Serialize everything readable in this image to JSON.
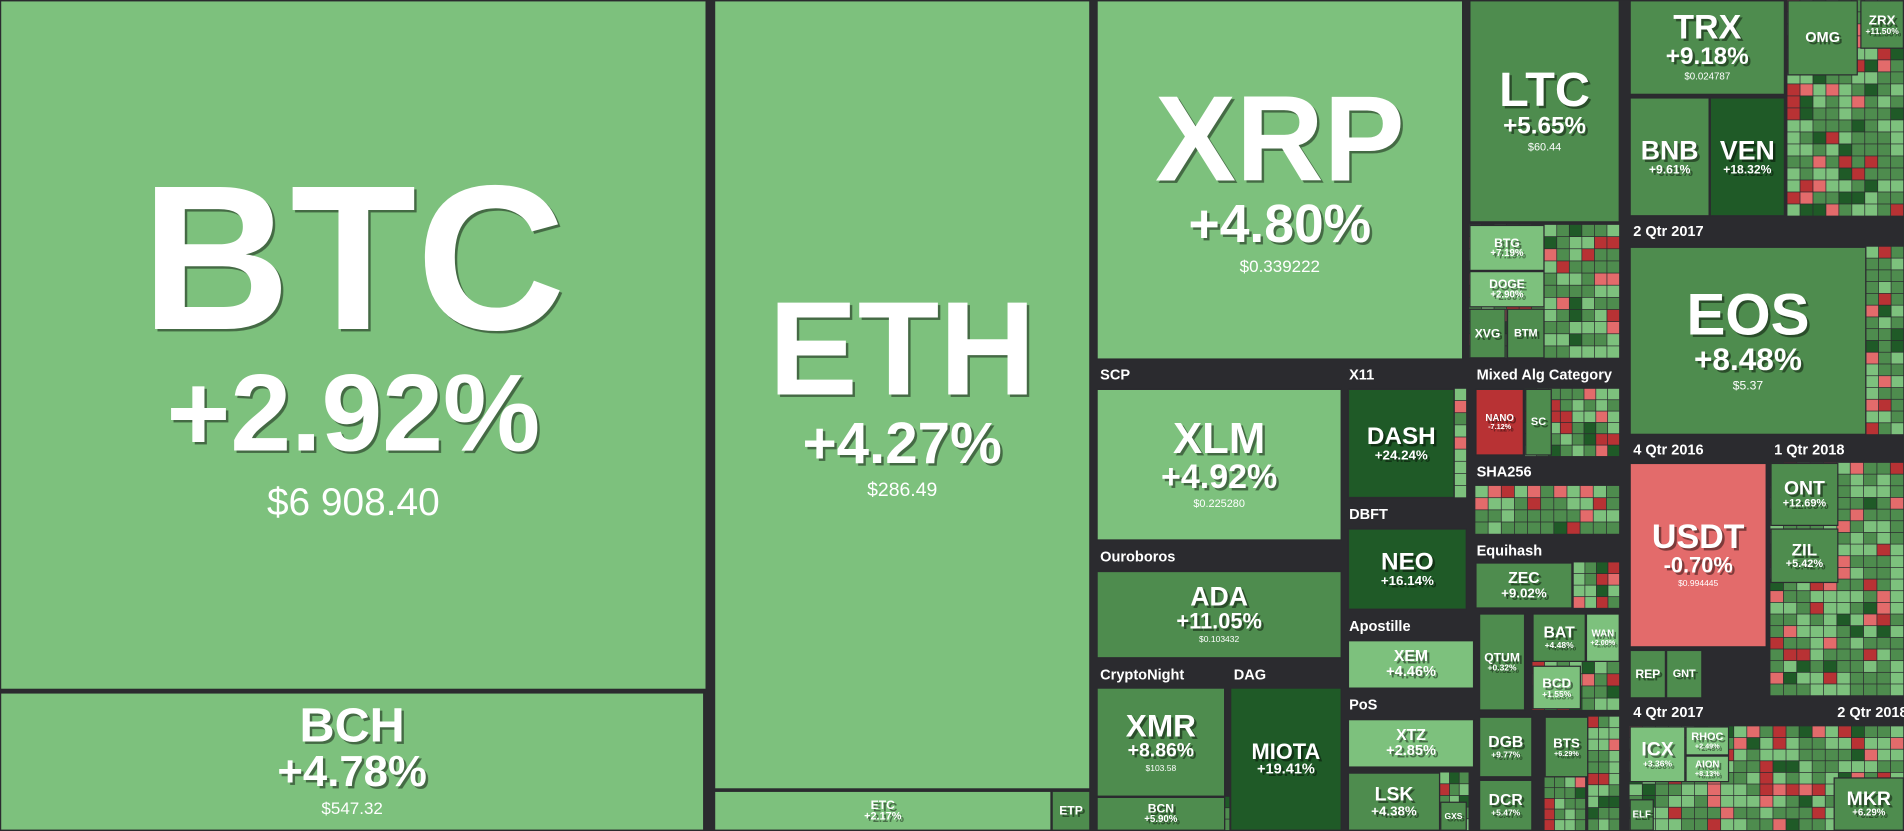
{
  "tiles": [
    {
      "symbol": "BTC",
      "change": "+2.92%",
      "price": "$6 908.40"
    },
    {
      "symbol": "BCH",
      "change": "+4.78%",
      "price": "$547.32"
    },
    {
      "symbol": "ETH",
      "change": "+4.27%",
      "price": "$286.49"
    },
    {
      "symbol": "ETC",
      "change": "+2.17%"
    },
    {
      "symbol": "ETP"
    },
    {
      "symbol": "XRP",
      "change": "+4.80%",
      "price": "$0.339222"
    },
    {
      "symbol": "LTC",
      "change": "+5.65%",
      "price": "$60.44"
    },
    {
      "symbol": "BTG",
      "change": "+7.19%"
    },
    {
      "symbol": "DOGE",
      "change": "+2.90%"
    },
    {
      "symbol": "XVG"
    },
    {
      "symbol": "BTM"
    },
    {
      "symbol": "TRX",
      "change": "+9.18%",
      "price": "$0.024787"
    },
    {
      "symbol": "OMG"
    },
    {
      "symbol": "ZRX",
      "change": "+11.50%"
    },
    {
      "symbol": "BNB",
      "change": "+9.61%"
    },
    {
      "symbol": "VEN",
      "change": "+18.32%"
    },
    {
      "symbol": "EOS",
      "change": "+8.48%",
      "price": "$5.37"
    },
    {
      "symbol": "USDT",
      "change": "-0.70%",
      "price": "$0.994445"
    },
    {
      "symbol": "ONT",
      "change": "+12.69%"
    },
    {
      "symbol": "ZIL",
      "change": "+5.42%"
    },
    {
      "symbol": "REP"
    },
    {
      "symbol": "GNT"
    },
    {
      "symbol": "ICX",
      "change": "+3.36%"
    },
    {
      "symbol": "RHOC",
      "change": "+2.49%"
    },
    {
      "symbol": "AION",
      "change": "+8.13%"
    },
    {
      "symbol": "ELF"
    },
    {
      "symbol": "MKR",
      "change": "+6.29%"
    },
    {
      "symbol": "XLM",
      "change": "+4.92%",
      "price": "$0.225280"
    },
    {
      "symbol": "ADA",
      "change": "+11.05%",
      "price": "$0.103432"
    },
    {
      "symbol": "XMR",
      "change": "+8.86%",
      "price": "$103.58"
    },
    {
      "symbol": "BCN",
      "change": "+5.90%"
    },
    {
      "symbol": "MIOTA",
      "change": "+19.41%"
    },
    {
      "symbol": "DASH",
      "change": "+24.24%"
    },
    {
      "symbol": "NEO",
      "change": "+16.14%"
    },
    {
      "symbol": "XEM",
      "change": "+4.46%"
    },
    {
      "symbol": "XTZ",
      "change": "+2.85%"
    },
    {
      "symbol": "LSK",
      "change": "+4.38%"
    },
    {
      "symbol": "GXS"
    },
    {
      "symbol": "NANO",
      "change": "-7.12%"
    },
    {
      "symbol": "SC"
    },
    {
      "symbol": "ZEC",
      "change": "+9.02%"
    },
    {
      "symbol": "QTUM",
      "change": "+0.32%"
    },
    {
      "symbol": "BAT",
      "change": "+4.48%"
    },
    {
      "symbol": "WAN",
      "change": "+2.00%"
    },
    {
      "symbol": "BCD",
      "change": "+1.55%"
    },
    {
      "symbol": "DGB",
      "change": "+9.77%"
    },
    {
      "symbol": "BTS",
      "change": "+6.29%"
    },
    {
      "symbol": "DCR",
      "change": "+5.47%"
    }
  ],
  "groups": [
    "SCP",
    "Ouroboros",
    "CryptoNight",
    "DAG",
    "X11",
    "DBFT",
    "Apostille",
    "PoS",
    "Mixed Alg Category",
    "SHA256",
    "Equihash",
    "2 Qtr 2017",
    "4 Qtr 2016",
    "1 Qtr 2018",
    "4 Qtr 2017",
    "2 Qtr 2018"
  ]
}
